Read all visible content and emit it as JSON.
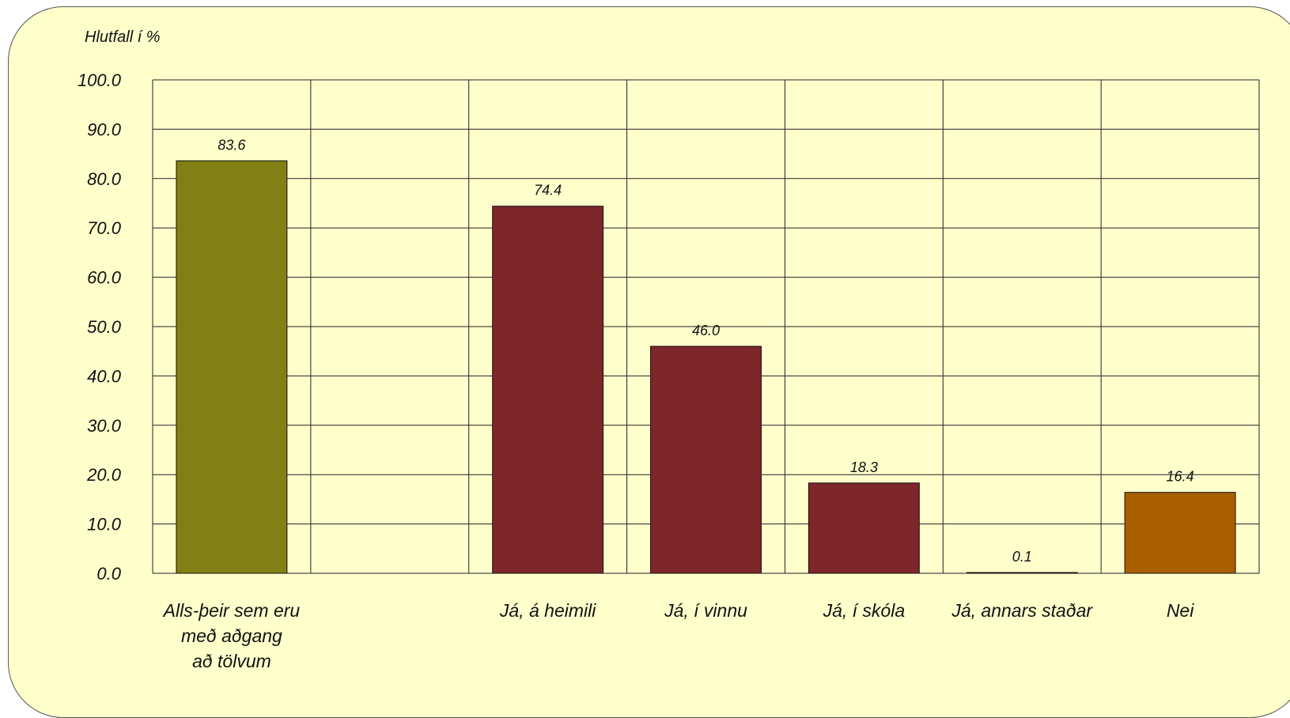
{
  "chart_data": {
    "type": "bar",
    "ylabel": "Hlutfall í %",
    "ylim": [
      0,
      100
    ],
    "yticks": [
      "0.0",
      "10.0",
      "20.0",
      "30.0",
      "40.0",
      "50.0",
      "60.0",
      "70.0",
      "80.0",
      "90.0",
      "100.0"
    ],
    "grid": true,
    "categories": [
      [
        "Alls-þeir sem eru",
        "með aðgang",
        "að tölvum"
      ],
      [
        ""
      ],
      [
        "Já, á heimili"
      ],
      [
        "Já, í vinnu"
      ],
      [
        "Já, í skóla"
      ],
      [
        "Já, annars staðar"
      ],
      [
        "Nei"
      ]
    ],
    "values": [
      83.6,
      null,
      74.4,
      46.0,
      18.3,
      0.1,
      16.4
    ],
    "value_labels": [
      "83.6",
      "",
      "74.4",
      "46.0",
      "18.3",
      "0.1",
      "16.4"
    ],
    "bar_colors": [
      "#827f14",
      "",
      "#7f262a",
      "#7f262a",
      "#7f262a",
      "#7f262a",
      "#a95f00"
    ],
    "background_color": "#ffffcc"
  }
}
